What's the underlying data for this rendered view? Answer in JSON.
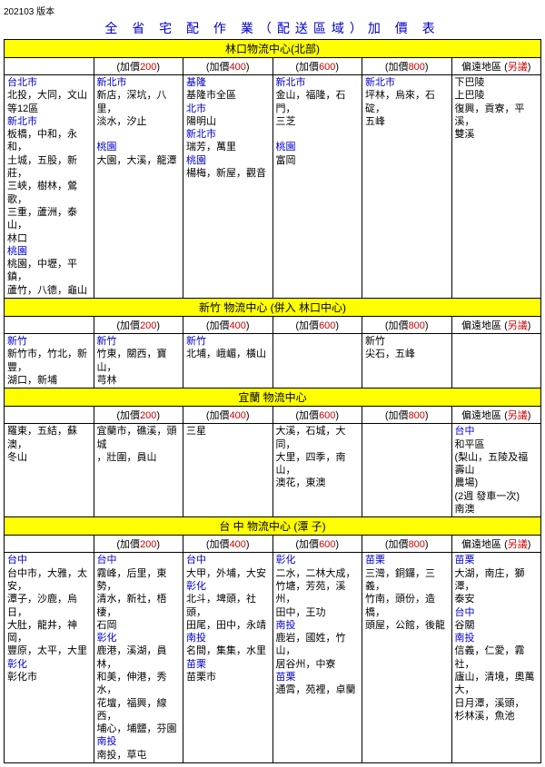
{
  "version": "202103 版本",
  "mainTitle": "全 省 宅 配 作 業（配送區域）加 價 表",
  "sectionHeaders": {
    "A": "林口物流中心(北部)",
    "B": "新竹 物流中心 (併入 林口中心)",
    "C": "宜蘭 物流中心",
    "D": "台 中 物流中心 (潭 子)"
  },
  "colPrefix": "(加價",
  "colVals": [
    "200",
    "400",
    "600",
    "800"
  ],
  "colSuffix": ")",
  "remoteLabel": "偏遠地區 (",
  "remoteLabel2": "另議",
  "remoteLabel3": ")",
  "A": {
    "r": [
      {
        "t": "台北市",
        "c": "blue"
      },
      {
        "t": "北投，大同，文山"
      },
      {
        "t": "等12區"
      },
      {
        "t": "新北市",
        "c": "blue"
      },
      {
        "t": "板橋，中和，永和，"
      },
      {
        "t": "土城，五股，新莊，"
      },
      {
        "t": "三峽，樹林，鶯歌，"
      },
      {
        "t": "三重，蘆洲，泰山，"
      },
      {
        "t": "林口"
      },
      {
        "t": "桃園",
        "c": "blue"
      },
      {
        "t": "桃園，中壢，平鎮，"
      },
      {
        "t": "蘆竹，八德，龜山"
      }
    ],
    "c1": [
      {
        "t": "新北市",
        "c": "blue"
      },
      {
        "t": "新店，深坑，八里，"
      },
      {
        "t": "淡水，汐止"
      },
      {
        "t": ""
      },
      {
        "t": "桃園",
        "c": "blue"
      },
      {
        "t": "大園，大溪，龍潭"
      }
    ],
    "c2": [
      {
        "t": "基隆",
        "c": "blue"
      },
      {
        "t": "基隆市全區"
      },
      {
        "t": "北市",
        "c": "blue"
      },
      {
        "t": "陽明山"
      },
      {
        "t": "新北市",
        "c": "blue"
      },
      {
        "t": "瑞芳，萬里"
      },
      {
        "t": "桃園",
        "c": "blue"
      },
      {
        "t": "楊梅，新屋，觀音"
      }
    ],
    "c3": [
      {
        "t": "新北市",
        "c": "blue"
      },
      {
        "t": "金山，福隆，石門，"
      },
      {
        "t": "三芝"
      },
      {
        "t": ""
      },
      {
        "t": "桃園",
        "c": "blue"
      },
      {
        "t": "富岡"
      }
    ],
    "c4": [
      {
        "t": "新北市",
        "c": "blue"
      },
      {
        "t": "坪林，烏來，石碇，"
      },
      {
        "t": "五峰"
      }
    ],
    "c5": [
      {
        "t": "下巴陵"
      },
      {
        "t": "上巴陵"
      },
      {
        "t": "復興，貢寮，平溪，"
      },
      {
        "t": "雙溪"
      }
    ]
  },
  "B": {
    "r": [
      {
        "t": "新竹",
        "c": "blue"
      },
      {
        "t": "新竹市，竹北，新豐，"
      },
      {
        "t": "湖口，新埔"
      }
    ],
    "c1": [
      {
        "t": "新竹",
        "c": "blue"
      },
      {
        "t": "竹東，關西，寶山，"
      },
      {
        "t": "芎林"
      }
    ],
    "c2": [
      {
        "t": "新竹",
        "c": "blue"
      },
      {
        "t": "北埔，峨嵋，橫山"
      }
    ],
    "c3": [],
    "c4": [
      {
        "t": "新竹"
      },
      {
        "t": "尖石，五峰"
      }
    ],
    "c5": []
  },
  "C": {
    "r": [
      {
        "t": "羅東，五結，蘇澳，"
      },
      {
        "t": "冬山"
      }
    ],
    "c1": [
      {
        "t": "宜蘭市，礁溪，頭城"
      },
      {
        "t": "，壯圍，員山"
      }
    ],
    "c2": [
      {
        "t": "三星"
      }
    ],
    "c3": [
      {
        "t": "大溪，石城，大同，"
      },
      {
        "t": "大里，四季，南山，"
      },
      {
        "t": "澳花，東澳"
      }
    ],
    "c4": [],
    "c5": [
      {
        "t": "台中",
        "c": "blue"
      },
      {
        "t": "和平區"
      },
      {
        "t": "(梨山，五陵及福壽山"
      },
      {
        "t": "農場)"
      },
      {
        "t": "(2週 發車一次)"
      },
      {
        "t": "南澳"
      }
    ]
  },
  "D": {
    "r": [
      {
        "t": "台中",
        "c": "blue"
      },
      {
        "t": "台中市，大雅，太安，"
      },
      {
        "t": "潭子，沙鹿，烏日，"
      },
      {
        "t": "大肚，龍井，神岡，"
      },
      {
        "t": "豐原，太平，大里"
      },
      {
        "t": "彰化",
        "c": "blue"
      },
      {
        "t": "彰化市"
      }
    ],
    "c1": [
      {
        "t": "台中",
        "c": "blue"
      },
      {
        "t": "霧峰，后里，東勢，"
      },
      {
        "t": "清水，新社，梧棲，"
      },
      {
        "t": "石岡"
      },
      {
        "t": "彰化",
        "c": "blue"
      },
      {
        "t": "鹿港，溪湖，員林，"
      },
      {
        "t": "和美，伸港，秀水，"
      },
      {
        "t": "花壇，福興，線西，"
      },
      {
        "t": "埔心，埔鹽，芬園"
      },
      {
        "t": "南投",
        "c": "blue"
      },
      {
        "t": "南投，草屯"
      }
    ],
    "c2": [
      {
        "t": "台中",
        "c": "blue"
      },
      {
        "t": "大甲，外埔，大安"
      },
      {
        "t": "彰化",
        "c": "blue"
      },
      {
        "t": "北斗，埤頭，社頭，"
      },
      {
        "t": "田尾，田中，永靖"
      },
      {
        "t": "南投",
        "c": "blue"
      },
      {
        "t": "名間，集集，水里"
      },
      {
        "t": "苗栗",
        "c": "blue"
      },
      {
        "t": "苗栗市"
      }
    ],
    "c3": [
      {
        "t": "彰化",
        "c": "blue"
      },
      {
        "t": "二水，二林大成，"
      },
      {
        "t": "竹塘，芳苑，溪州，"
      },
      {
        "t": "田中，王功"
      },
      {
        "t": "南投",
        "c": "blue"
      },
      {
        "t": "鹿岩，國姓，竹山，"
      },
      {
        "t": "居谷州，中寮"
      },
      {
        "t": "苗栗",
        "c": "blue"
      },
      {
        "t": "通霄，苑裡，卓蘭"
      }
    ],
    "c4": [
      {
        "t": "苗栗",
        "c": "blue"
      },
      {
        "t": "三灣，銅鑼，三義，"
      },
      {
        "t": "竹南，頭份，造橋，"
      },
      {
        "t": "頭屋，公館，後龍"
      }
    ],
    "c5": [
      {
        "t": "苗栗",
        "c": "blue"
      },
      {
        "t": "大湖，南庄，獅潭，"
      },
      {
        "t": "泰安"
      },
      {
        "t": "台中",
        "c": "blue"
      },
      {
        "t": "谷關"
      },
      {
        "t": "南投",
        "c": "blue"
      },
      {
        "t": "信義，仁愛，霧社，"
      },
      {
        "t": "廬山，清境，奧萬大，"
      },
      {
        "t": "日月潭，溪頭，"
      },
      {
        "t": "杉林溪，魚池"
      }
    ]
  }
}
